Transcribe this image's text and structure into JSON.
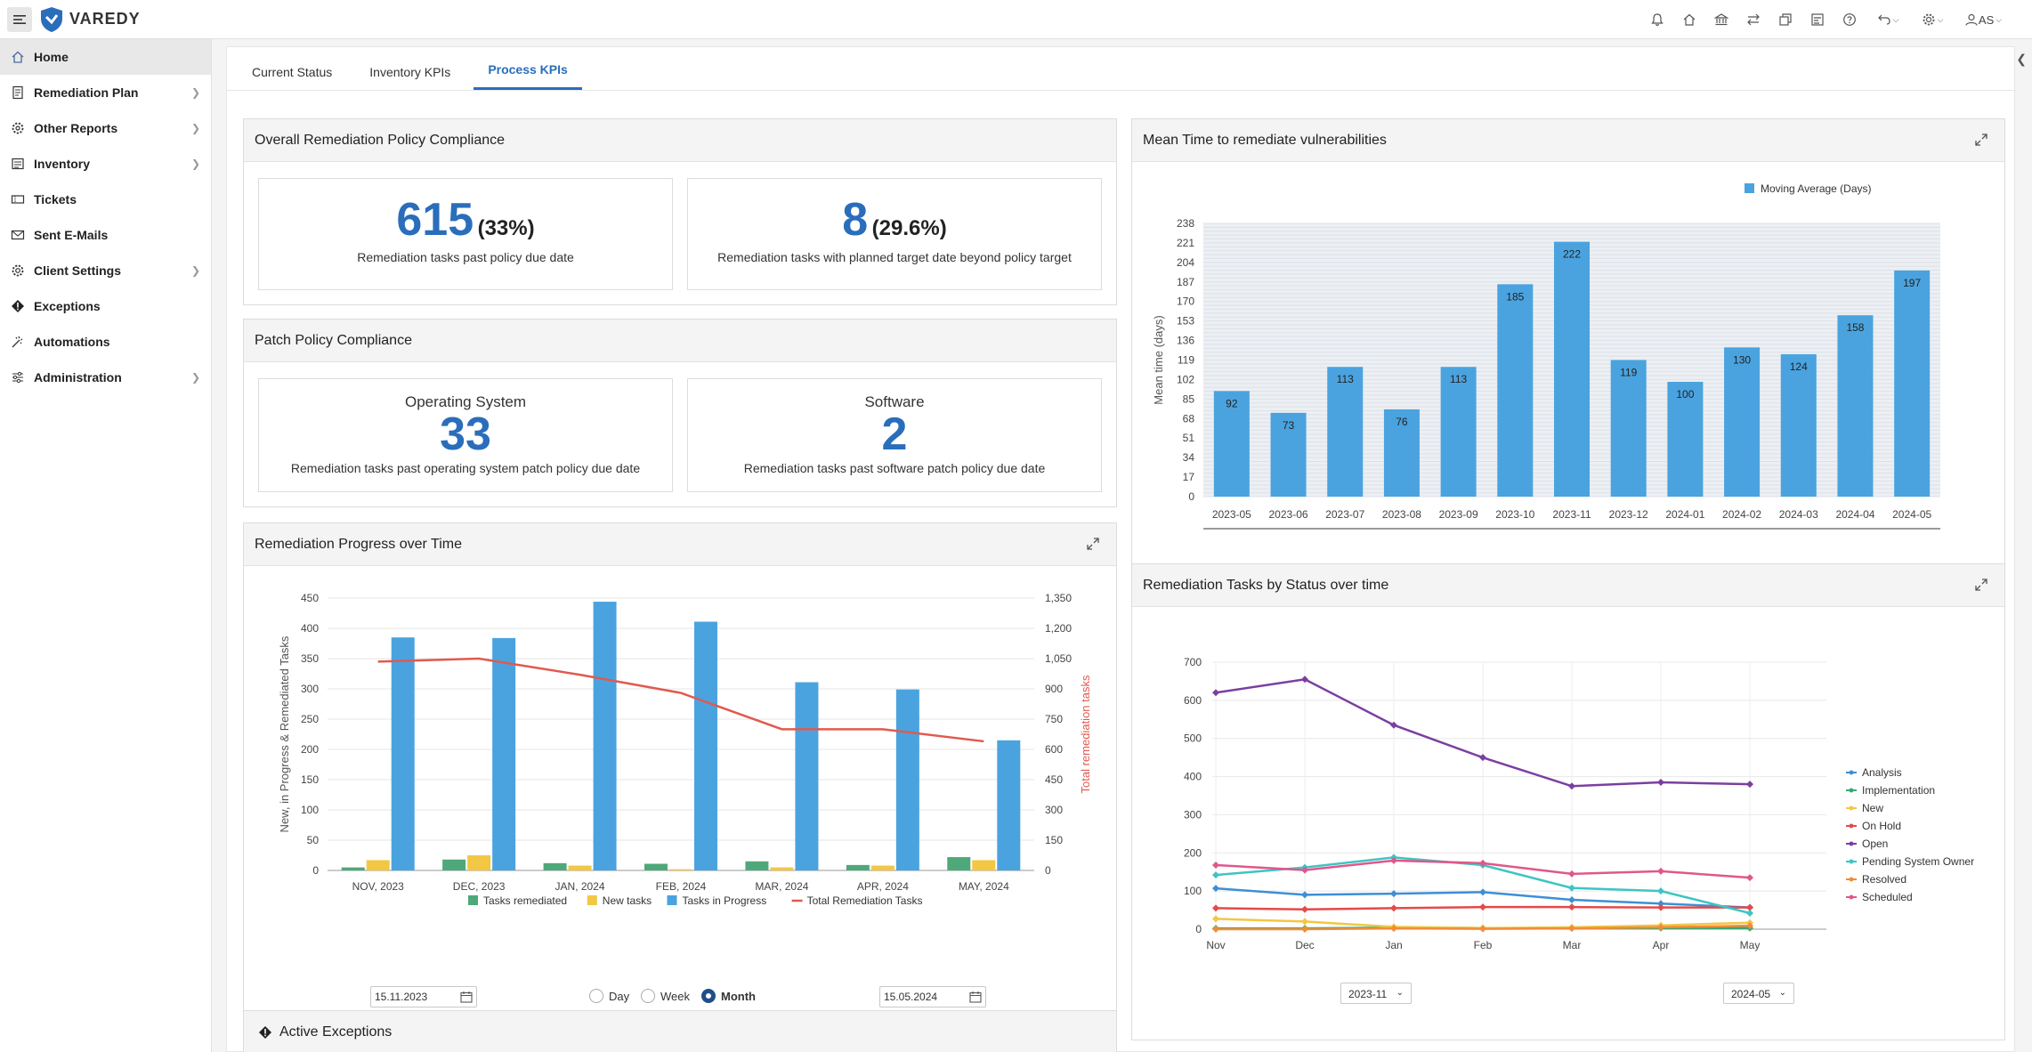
{
  "app": {
    "brand": "VAREDY",
    "user_initials": "AS"
  },
  "sidebar": {
    "items": [
      {
        "label": "Home",
        "icon": "home-icon",
        "active": true,
        "has_children": false
      },
      {
        "label": "Remediation Plan",
        "icon": "document-icon",
        "has_children": true
      },
      {
        "label": "Other Reports",
        "icon": "reports-icon",
        "has_children": true
      },
      {
        "label": "Inventory",
        "icon": "inventory-icon",
        "has_children": true
      },
      {
        "label": "Tickets",
        "icon": "ticket-icon",
        "has_children": false
      },
      {
        "label": "Sent E-Mails",
        "icon": "mail-icon",
        "has_children": false
      },
      {
        "label": "Client Settings",
        "icon": "gear-icon",
        "has_children": true
      },
      {
        "label": "Exceptions",
        "icon": "exception-icon",
        "has_children": false
      },
      {
        "label": "Automations",
        "icon": "automation-icon",
        "has_children": false
      },
      {
        "label": "Administration",
        "icon": "sliders-icon",
        "has_children": true
      }
    ]
  },
  "tabs": [
    {
      "label": "Current Status",
      "active": false
    },
    {
      "label": "Inventory KPIs",
      "active": false
    },
    {
      "label": "Process KPIs",
      "active": true
    }
  ],
  "overall": {
    "title": "Overall Remediation Policy Compliance",
    "card1": {
      "value": "615",
      "pct": "(33%)",
      "desc": "Remediation tasks past policy due date"
    },
    "card2": {
      "value": "8",
      "pct": "(29.6%)",
      "desc": "Remediation tasks with planned target date beyond policy target"
    }
  },
  "patch": {
    "title": "Patch Policy Compliance",
    "os": {
      "title": "Operating System",
      "value": "33",
      "desc": "Remediation tasks past operating system patch policy due date"
    },
    "sw": {
      "title": "Software",
      "value": "2",
      "desc": "Remediation tasks past software patch policy due date"
    }
  },
  "progress": {
    "title": "Remediation Progress over Time",
    "start_date": "15.11.2023",
    "end_date": "15.05.2024",
    "granularity": {
      "day": "Day",
      "week": "Week",
      "month": "Month",
      "selected": "Month"
    }
  },
  "exceptions": {
    "title": "Active Exceptions"
  },
  "mttr": {
    "title": "Mean Time to remediate vulnerabilities"
  },
  "status": {
    "title": "Remediation Tasks by Status over time",
    "from": "2023-11",
    "to": "2024-05"
  },
  "chart_data": [
    {
      "id": "progress",
      "type": "bar",
      "categories": [
        "NOV, 2023",
        "DEC, 2023",
        "JAN, 2024",
        "FEB, 2024",
        "MAR, 2024",
        "APR, 2024",
        "MAY, 2024"
      ],
      "series": [
        {
          "name": "Tasks remediated",
          "color": "#4fa87a",
          "axis": "left",
          "values": [
            5,
            18,
            12,
            11,
            15,
            9,
            22
          ]
        },
        {
          "name": "New tasks",
          "color": "#f2c744",
          "axis": "left",
          "values": [
            17,
            25,
            8,
            2,
            5,
            8,
            17
          ]
        },
        {
          "name": "Tasks in Progress",
          "color": "#4aa3df",
          "axis": "left",
          "values": [
            385,
            384,
            444,
            411,
            311,
            299,
            215
          ]
        },
        {
          "name": "Total Remediation Tasks",
          "color": "#e05a4f",
          "axis": "right",
          "type": "line",
          "values": [
            1035,
            1050,
            970,
            880,
            700,
            700,
            640
          ]
        }
      ],
      "ylabel": "New, in Progress & Remediated Tasks",
      "y2label": "Total remediation tasks",
      "ylim": [
        0,
        450
      ],
      "y2lim": [
        0,
        1350
      ],
      "yticks": [
        0,
        50,
        100,
        150,
        200,
        250,
        300,
        350,
        400,
        450
      ],
      "y2ticks": [
        "0",
        "150",
        "300",
        "450",
        "600",
        "750",
        "900",
        "1,050",
        "1,200",
        "1,350"
      ],
      "legend": "bottom"
    },
    {
      "id": "mttr",
      "type": "bar",
      "categories": [
        "2023-05",
        "2023-06",
        "2023-07",
        "2023-08",
        "2023-09",
        "2023-10",
        "2023-11",
        "2023-12",
        "2024-01",
        "2024-02",
        "2024-03",
        "2024-04",
        "2024-05"
      ],
      "series": [
        {
          "name": "Moving Average (Days)",
          "color": "#4aa3df",
          "values": [
            92,
            73,
            113,
            76,
            113,
            185,
            222,
            119,
            100,
            130,
            124,
            158,
            197
          ]
        }
      ],
      "ylabel": "Mean time (days)",
      "ylim": [
        0,
        238
      ],
      "yticks": [
        0,
        17,
        34,
        51,
        68,
        85,
        102,
        119,
        136,
        153,
        170,
        187,
        204,
        221,
        238
      ],
      "legend": "top"
    },
    {
      "id": "status",
      "type": "line",
      "categories": [
        "Nov",
        "Dec",
        "Jan",
        "Feb",
        "Mar",
        "Apr",
        "May"
      ],
      "series": [
        {
          "name": "Analysis",
          "color": "#3d8fd6",
          "values": [
            107,
            90,
            93,
            97,
            77,
            67,
            57
          ]
        },
        {
          "name": "Implementation",
          "color": "#3aa675",
          "values": [
            2,
            2,
            4,
            3,
            3,
            3,
            3
          ]
        },
        {
          "name": "New",
          "color": "#f2c744",
          "values": [
            27,
            20,
            6,
            3,
            5,
            10,
            17
          ]
        },
        {
          "name": "On Hold",
          "color": "#e34a4a",
          "values": [
            55,
            52,
            55,
            58,
            58,
            57,
            57
          ]
        },
        {
          "name": "Open",
          "color": "#7b3fa0",
          "values": [
            620,
            655,
            535,
            450,
            375,
            385,
            380
          ]
        },
        {
          "name": "Pending System Owner",
          "color": "#3ec4c4",
          "values": [
            142,
            162,
            188,
            168,
            108,
            100,
            42
          ]
        },
        {
          "name": "Resolved",
          "color": "#f28c38",
          "values": [
            0,
            0,
            2,
            1,
            2,
            5,
            9
          ]
        },
        {
          "name": "Scheduled",
          "color": "#e0578a",
          "values": [
            168,
            155,
            180,
            173,
            145,
            152,
            135
          ]
        }
      ],
      "ylim": [
        0,
        700
      ],
      "yticks": [
        0,
        100,
        200,
        300,
        400,
        500,
        600,
        700
      ],
      "legend": "right"
    }
  ]
}
